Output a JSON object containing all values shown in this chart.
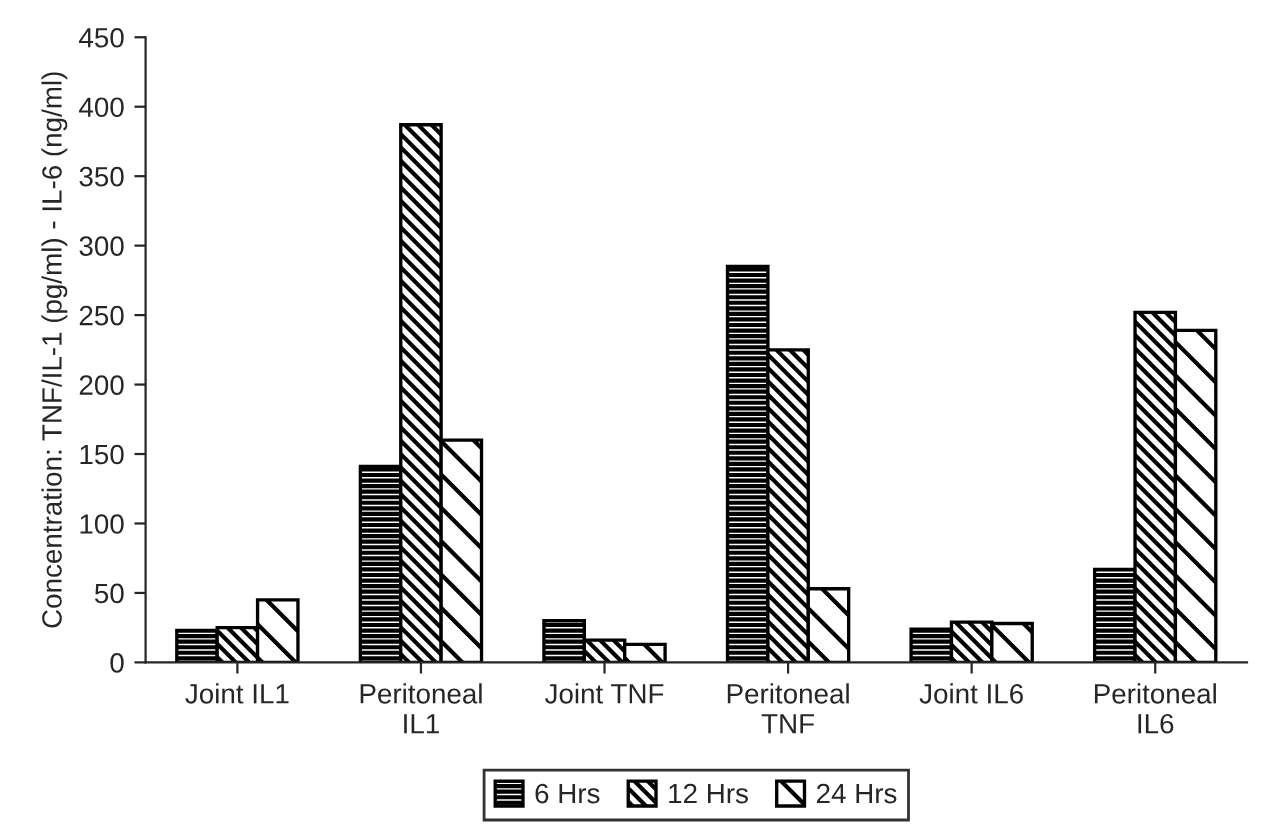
{
  "chart_data": {
    "type": "bar",
    "ylabel": "Concentration: TNF/IL-1 (pg/ml) - IL-6 (ng/ml)",
    "categories": [
      "Joint IL1",
      "Peritoneal\nIL1",
      "Joint TNF",
      "Peritoneal\nTNF",
      "Joint IL6",
      "Peritoneal\nIL6"
    ],
    "series": [
      {
        "name": "6 Hrs",
        "color": "#000000",
        "values": [
          23,
          141,
          30,
          285,
          24,
          67
        ]
      },
      {
        "name": "12 Hrs",
        "color": "#000000",
        "values": [
          25,
          387,
          16,
          225,
          29,
          252
        ]
      },
      {
        "name": "24 Hrs",
        "color": "#000000",
        "values": [
          45,
          160,
          13,
          53,
          28,
          239
        ]
      }
    ],
    "ylim": [
      0,
      450
    ],
    "yticks": [
      0,
      50,
      100,
      150,
      200,
      250,
      300,
      350,
      400,
      450
    ],
    "grid": false,
    "legend": "bottom"
  }
}
